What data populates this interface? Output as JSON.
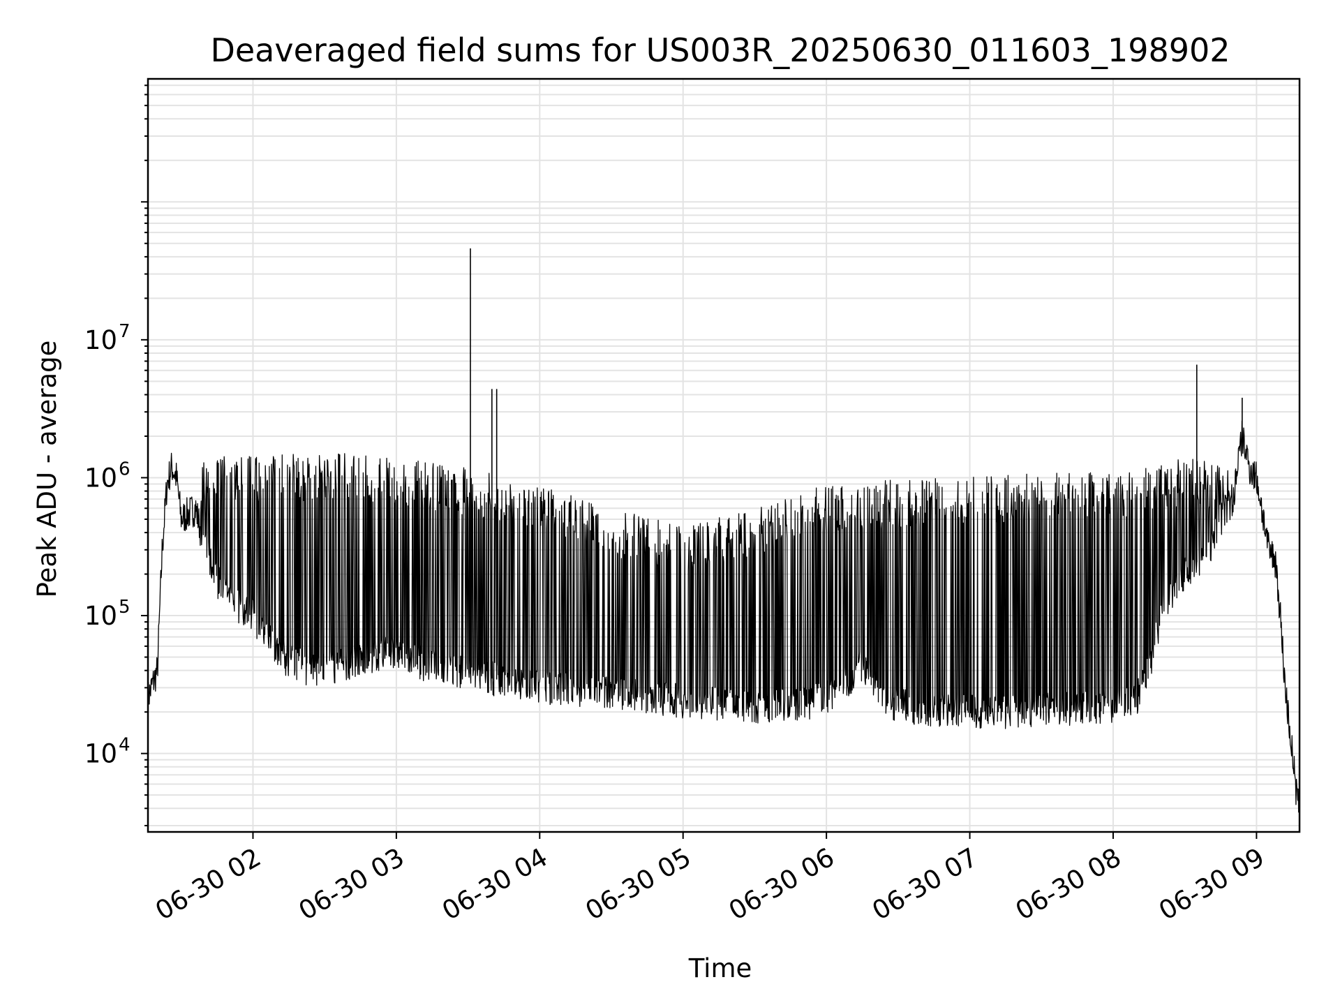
{
  "chart_data": {
    "type": "line",
    "title": "Deaveraged field sums for US003R_20250630_011603_198902",
    "xlabel": "Time",
    "ylabel": "Peak ADU - average",
    "x_range": [
      "2025-06-30 01:16:03",
      "2025-06-30 09:18:00"
    ],
    "y_range": [
      2700,
      780000000
    ],
    "y_scale": "log",
    "grid": true,
    "x_ticks": [
      {
        "t": "2025-06-30 02:00",
        "label": "06-30 02"
      },
      {
        "t": "2025-06-30 03:00",
        "label": "06-30 03"
      },
      {
        "t": "2025-06-30 04:00",
        "label": "06-30 04"
      },
      {
        "t": "2025-06-30 05:00",
        "label": "06-30 05"
      },
      {
        "t": "2025-06-30 06:00",
        "label": "06-30 06"
      },
      {
        "t": "2025-06-30 07:00",
        "label": "06-30 07"
      },
      {
        "t": "2025-06-30 08:00",
        "label": "06-30 08"
      },
      {
        "t": "2025-06-30 09:00",
        "label": "06-30 09"
      }
    ],
    "y_ticks": [
      {
        "value": 10000,
        "base": "10",
        "exp": "4"
      },
      {
        "value": 100000,
        "base": "10",
        "exp": "5"
      },
      {
        "value": 1000000,
        "base": "10",
        "exp": "6"
      },
      {
        "value": 10000000,
        "base": "10",
        "exp": "7"
      }
    ],
    "series": [
      {
        "color": "#000000",
        "points": [
          [
            "2025-06-30 01:16",
            25000
          ],
          [
            "2025-06-30 01:18",
            32000
          ],
          [
            "2025-06-30 01:20",
            40000
          ],
          [
            "2025-06-30 01:22",
            300000
          ],
          [
            "2025-06-30 01:24",
            900000
          ],
          [
            "2025-06-30 01:26",
            1200000
          ],
          [
            "2025-06-30 01:28",
            1000000
          ],
          [
            "2025-06-30 01:30",
            500000
          ],
          [
            "2025-06-30 01:33",
            550000
          ],
          [
            "2025-06-30 01:36",
            600000
          ],
          [
            "2025-06-30 01:40",
            300000
          ],
          [
            "2025-06-30 01:45",
            180000
          ],
          [
            "2025-06-30 01:50",
            130000
          ],
          [
            "2025-06-30 02:00",
            100000
          ],
          [
            "2025-06-30 02:06",
            70000
          ],
          [
            "2025-06-30 02:12",
            50000
          ],
          [
            "2025-06-30 02:18",
            45000
          ],
          [
            "2025-06-30 02:24",
            40000
          ],
          [
            "2025-06-30 02:30",
            42000
          ],
          [
            "2025-06-30 02:40",
            45000
          ],
          [
            "2025-06-30 02:50",
            50000
          ],
          [
            "2025-06-30 03:00",
            55000
          ],
          [
            "2025-06-30 03:10",
            45000
          ],
          [
            "2025-06-30 03:20",
            40000
          ],
          [
            "2025-06-30 03:30",
            38000
          ],
          [
            "2025-06-30 03:40",
            35000
          ],
          [
            "2025-06-30 03:50",
            32000
          ],
          [
            "2025-06-30 04:00",
            30000
          ],
          [
            "2025-06-30 04:15",
            29000
          ],
          [
            "2025-06-30 04:30",
            28000
          ],
          [
            "2025-06-30 04:45",
            26000
          ],
          [
            "2025-06-30 05:00",
            24000
          ],
          [
            "2025-06-30 05:15",
            23000
          ],
          [
            "2025-06-30 05:30",
            22000
          ],
          [
            "2025-06-30 05:45",
            22000
          ],
          [
            "2025-06-30 06:00",
            25000
          ],
          [
            "2025-06-30 06:10",
            35000
          ],
          [
            "2025-06-30 06:15",
            45000
          ],
          [
            "2025-06-30 06:20",
            30000
          ],
          [
            "2025-06-30 06:30",
            22000
          ],
          [
            "2025-06-30 06:45",
            21000
          ],
          [
            "2025-06-30 07:00",
            20000
          ],
          [
            "2025-06-30 07:15",
            20000
          ],
          [
            "2025-06-30 07:30",
            21000
          ],
          [
            "2025-06-30 07:45",
            21000
          ],
          [
            "2025-06-30 08:00",
            22000
          ],
          [
            "2025-06-30 08:10",
            25000
          ],
          [
            "2025-06-30 08:15",
            40000
          ],
          [
            "2025-06-30 08:20",
            100000
          ],
          [
            "2025-06-30 08:25",
            150000
          ],
          [
            "2025-06-30 08:30",
            200000
          ],
          [
            "2025-06-30 08:40",
            300000
          ],
          [
            "2025-06-30 08:45",
            500000
          ],
          [
            "2025-06-30 08:50",
            700000
          ],
          [
            "2025-06-30 08:54",
            2000000
          ],
          [
            "2025-06-30 08:57",
            1200000
          ],
          [
            "2025-06-30 09:00",
            1000000
          ],
          [
            "2025-06-30 09:03",
            500000
          ],
          [
            "2025-06-30 09:05",
            300000
          ],
          [
            "2025-06-30 09:08",
            250000
          ],
          [
            "2025-06-30 09:10",
            100000
          ],
          [
            "2025-06-30 09:12",
            30000
          ],
          [
            "2025-06-30 09:15",
            10000
          ],
          [
            "2025-06-30 09:17",
            4500
          ]
        ],
        "spikes": [
          [
            "2025-06-30 03:31",
            46000000
          ],
          [
            "2025-06-30 03:40",
            4400000
          ],
          [
            "2025-06-30 03:42",
            4400000
          ],
          [
            "2025-06-30 08:35",
            6600000
          ],
          [
            "2025-06-30 08:54",
            3800000
          ]
        ],
        "oscillation": {
          "start": "2025-06-30 01:38",
          "end": "2025-06-30 08:52",
          "upper_envelope": [
            [
              "2025-06-30 01:38",
              1400000
            ],
            [
              "2025-06-30 02:30",
              1550000
            ],
            [
              "2025-06-30 03:00",
              1400000
            ],
            [
              "2025-06-30 03:40",
              1100000
            ],
            [
              "2025-06-30 04:00",
              900000
            ],
            [
              "2025-06-30 04:30",
              600000
            ],
            [
              "2025-06-30 05:00",
              450000
            ],
            [
              "2025-06-30 05:30",
              600000
            ],
            [
              "2025-06-30 06:00",
              900000
            ],
            [
              "2025-06-30 07:00",
              1050000
            ],
            [
              "2025-06-30 08:00",
              1100000
            ],
            [
              "2025-06-30 08:30",
              1400000
            ],
            [
              "2025-06-30 08:52",
              1200000
            ]
          ]
        }
      }
    ]
  }
}
